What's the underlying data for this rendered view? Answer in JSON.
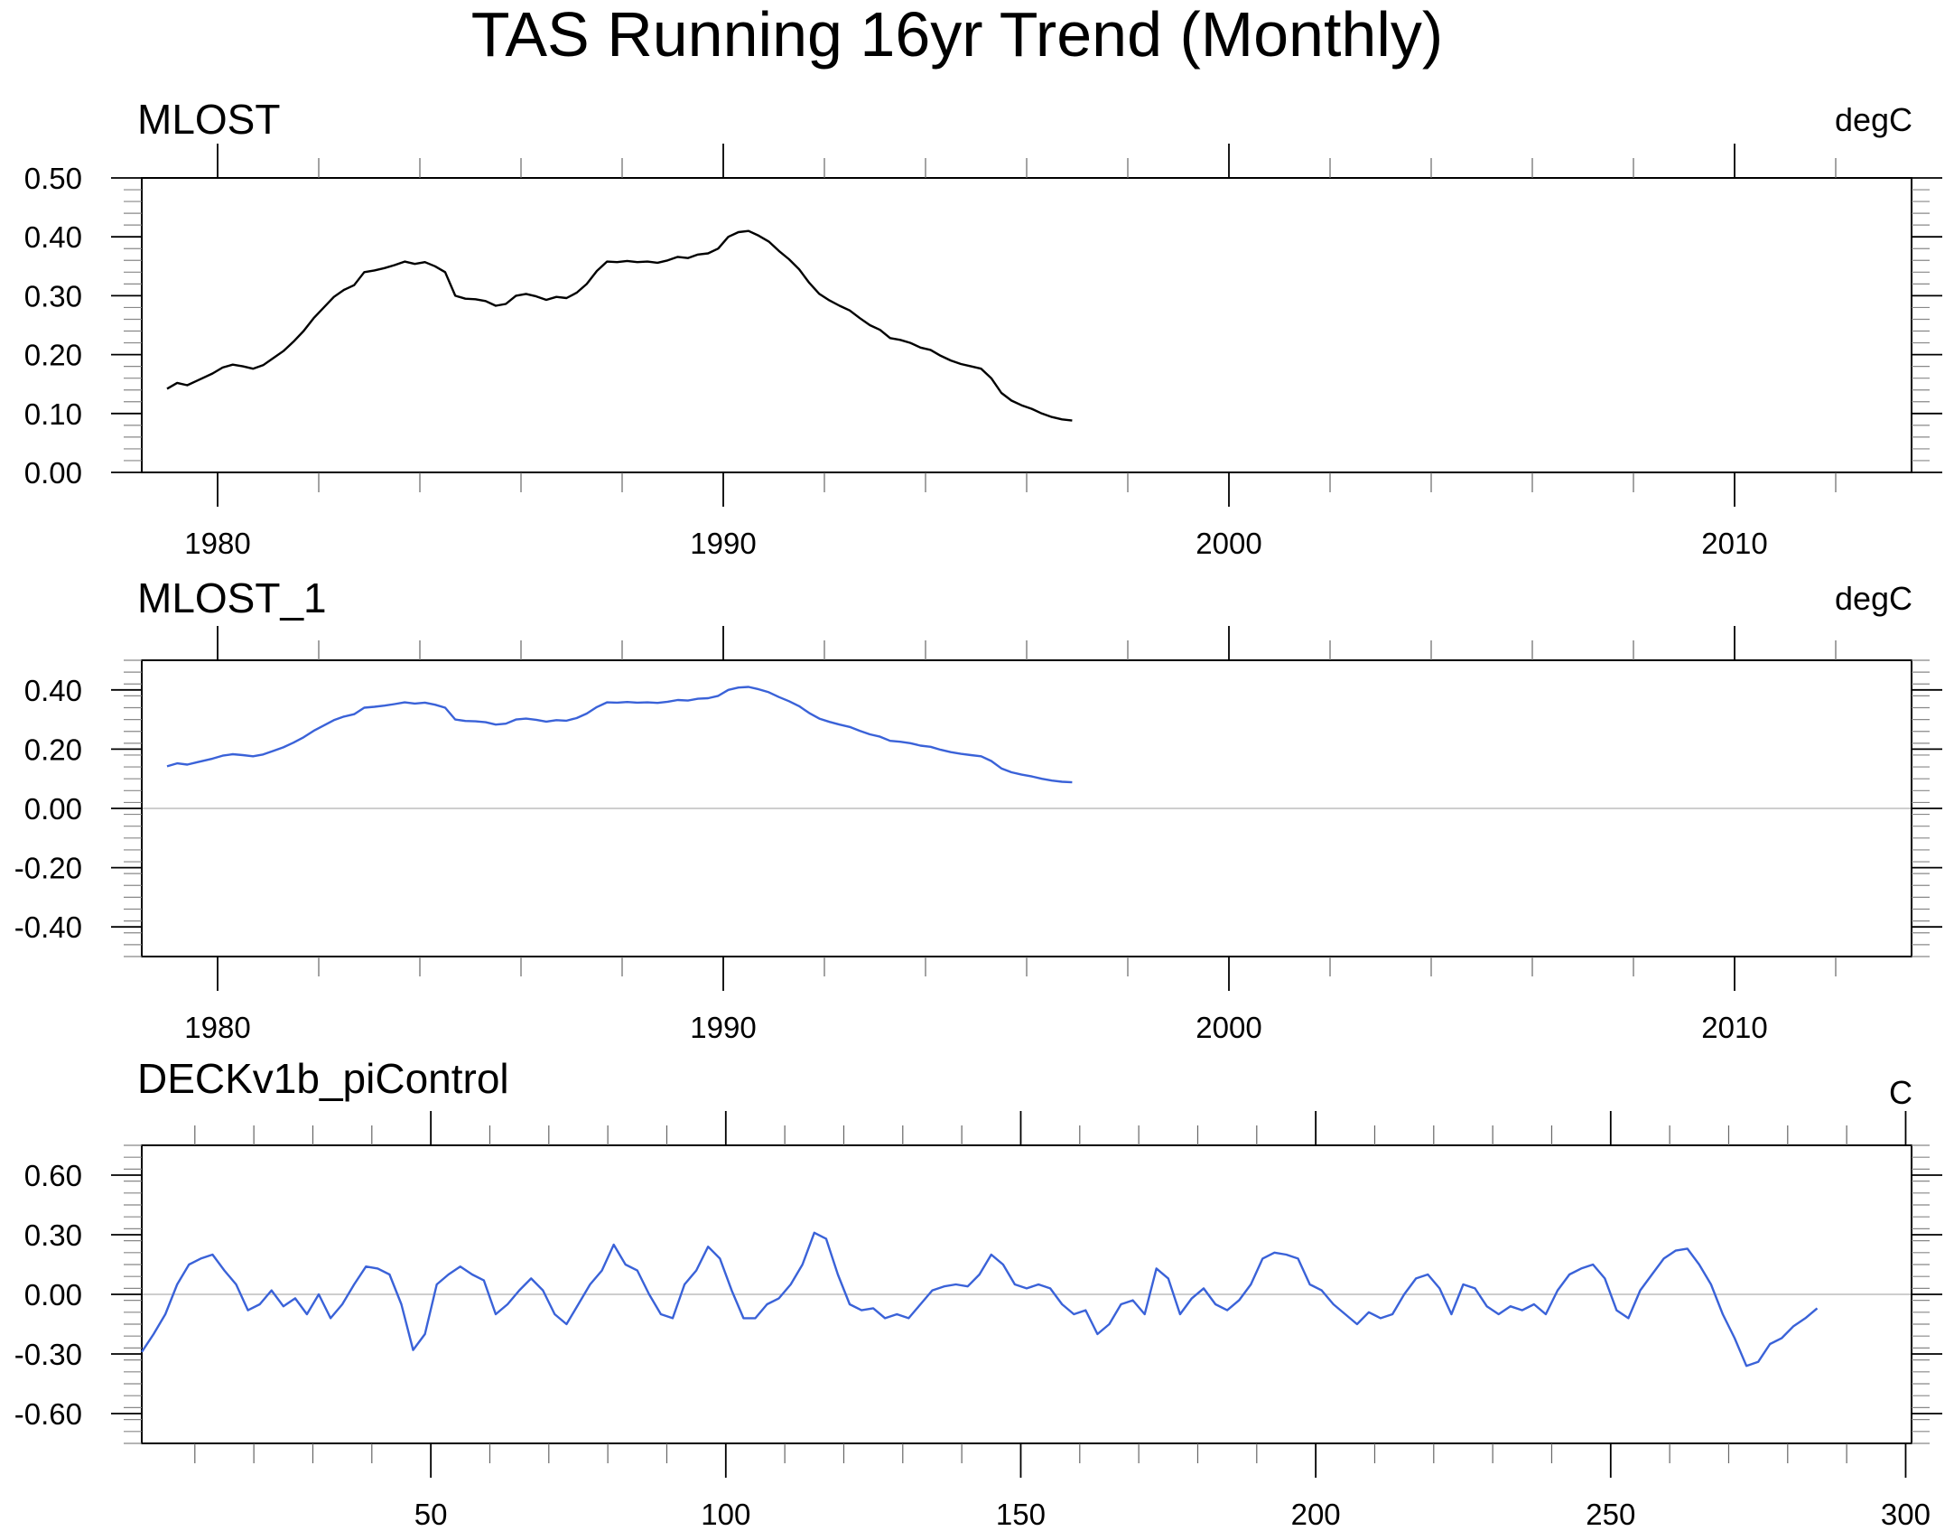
{
  "title": "TAS Running 16yr Trend (Monthly)",
  "colors": {
    "black": "#000000",
    "blue": "#3a62d8",
    "zero_line": "#bdbdbd"
  },
  "chart_data": [
    {
      "type": "line",
      "title": "MLOST",
      "units": "degC",
      "xlim": [
        1978.5,
        2013.5
      ],
      "ylim": [
        0.0,
        0.5
      ],
      "xticks": [
        1980,
        1990,
        2000,
        2010
      ],
      "xtick_labels": [
        "1980",
        "1990",
        "2000",
        "2010"
      ],
      "yticks": [
        0.0,
        0.1,
        0.2,
        0.3,
        0.4,
        0.5
      ],
      "ytick_labels": [
        "0.00",
        "0.10",
        "0.20",
        "0.30",
        "0.40",
        "0.50"
      ],
      "zero_line": false,
      "series": [
        {
          "color": "#000000",
          "x": [
            1979.0,
            1979.2,
            1979.4,
            1979.6,
            1979.9,
            1980.1,
            1980.3,
            1980.5,
            1980.7,
            1980.9,
            1981.1,
            1981.3,
            1981.5,
            1981.7,
            1981.9,
            1982.1,
            1982.3,
            1982.5,
            1982.7,
            1982.9,
            1983.1,
            1983.3,
            1983.5,
            1983.7,
            1983.9,
            1984.1,
            1984.3,
            1984.5,
            1984.7,
            1984.9,
            1985.1,
            1985.3,
            1985.5,
            1985.7,
            1985.9,
            1986.1,
            1986.3,
            1986.5,
            1986.7,
            1986.9,
            1987.1,
            1987.3,
            1987.5,
            1987.7,
            1987.9,
            1988.1,
            1988.3,
            1988.5,
            1988.7,
            1988.9,
            1989.1,
            1989.3,
            1989.5,
            1989.7,
            1989.9,
            1990.1,
            1990.3,
            1990.5,
            1990.7,
            1990.9,
            1991.1,
            1991.3,
            1991.5,
            1991.7,
            1991.9,
            1992.1,
            1992.3,
            1992.5,
            1992.7,
            1992.9,
            1993.1,
            1993.3,
            1993.5,
            1993.7,
            1993.9,
            1994.1,
            1994.3,
            1994.5,
            1994.7,
            1994.9,
            1995.1,
            1995.3,
            1995.5,
            1995.7,
            1995.9,
            1996.1,
            1996.3,
            1996.5,
            1996.7,
            1996.9
          ],
          "y": [
            0.142,
            0.152,
            0.148,
            0.156,
            0.168,
            0.178,
            0.183,
            0.18,
            0.176,
            0.182,
            0.194,
            0.206,
            0.222,
            0.24,
            0.262,
            0.28,
            0.298,
            0.31,
            0.318,
            0.34,
            0.343,
            0.347,
            0.352,
            0.358,
            0.354,
            0.357,
            0.35,
            0.34,
            0.3,
            0.295,
            0.294,
            0.291,
            0.283,
            0.286,
            0.3,
            0.303,
            0.299,
            0.293,
            0.298,
            0.296,
            0.305,
            0.32,
            0.342,
            0.358,
            0.357,
            0.359,
            0.357,
            0.358,
            0.356,
            0.36,
            0.366,
            0.364,
            0.37,
            0.372,
            0.38,
            0.4,
            0.408,
            0.41,
            0.402,
            0.392,
            0.376,
            0.362,
            0.345,
            0.322,
            0.303,
            0.292,
            0.283,
            0.275,
            0.262,
            0.25,
            0.242,
            0.228,
            0.225,
            0.22,
            0.212,
            0.208,
            0.198,
            0.19,
            0.184,
            0.18,
            0.176,
            0.16,
            0.135,
            0.122,
            0.114,
            0.108,
            0.1,
            0.094,
            0.09,
            0.088
          ]
        }
      ]
    },
    {
      "type": "line",
      "title": "MLOST_1",
      "units": "degC",
      "xlim": [
        1978.5,
        2013.5
      ],
      "ylim": [
        -0.5,
        0.5
      ],
      "xticks": [
        1980,
        1990,
        2000,
        2010
      ],
      "xtick_labels": [
        "1980",
        "1990",
        "2000",
        "2010"
      ],
      "yticks": [
        -0.4,
        -0.2,
        0.0,
        0.2,
        0.4
      ],
      "ytick_labels": [
        "-0.40",
        "-0.20",
        "0.00",
        "0.20",
        "0.40"
      ],
      "zero_line": true,
      "series": [
        {
          "color": "#3a62d8",
          "x": [
            1979.0,
            1979.2,
            1979.4,
            1979.6,
            1979.9,
            1980.1,
            1980.3,
            1980.5,
            1980.7,
            1980.9,
            1981.1,
            1981.3,
            1981.5,
            1981.7,
            1981.9,
            1982.1,
            1982.3,
            1982.5,
            1982.7,
            1982.9,
            1983.1,
            1983.3,
            1983.5,
            1983.7,
            1983.9,
            1984.1,
            1984.3,
            1984.5,
            1984.7,
            1984.9,
            1985.1,
            1985.3,
            1985.5,
            1985.7,
            1985.9,
            1986.1,
            1986.3,
            1986.5,
            1986.7,
            1986.9,
            1987.1,
            1987.3,
            1987.5,
            1987.7,
            1987.9,
            1988.1,
            1988.3,
            1988.5,
            1988.7,
            1988.9,
            1989.1,
            1989.3,
            1989.5,
            1989.7,
            1989.9,
            1990.1,
            1990.3,
            1990.5,
            1990.7,
            1990.9,
            1991.1,
            1991.3,
            1991.5,
            1991.7,
            1991.9,
            1992.1,
            1992.3,
            1992.5,
            1992.7,
            1992.9,
            1993.1,
            1993.3,
            1993.5,
            1993.7,
            1993.9,
            1994.1,
            1994.3,
            1994.5,
            1994.7,
            1994.9,
            1995.1,
            1995.3,
            1995.5,
            1995.7,
            1995.9,
            1996.1,
            1996.3,
            1996.5,
            1996.7,
            1996.9
          ],
          "y": [
            0.142,
            0.152,
            0.148,
            0.156,
            0.168,
            0.178,
            0.183,
            0.18,
            0.176,
            0.182,
            0.194,
            0.206,
            0.222,
            0.24,
            0.262,
            0.28,
            0.298,
            0.31,
            0.318,
            0.34,
            0.343,
            0.347,
            0.352,
            0.358,
            0.354,
            0.357,
            0.35,
            0.34,
            0.3,
            0.295,
            0.294,
            0.291,
            0.283,
            0.286,
            0.3,
            0.303,
            0.299,
            0.293,
            0.298,
            0.296,
            0.305,
            0.32,
            0.342,
            0.358,
            0.357,
            0.359,
            0.357,
            0.358,
            0.356,
            0.36,
            0.366,
            0.364,
            0.37,
            0.372,
            0.38,
            0.4,
            0.408,
            0.41,
            0.402,
            0.392,
            0.376,
            0.362,
            0.345,
            0.322,
            0.303,
            0.292,
            0.283,
            0.275,
            0.262,
            0.25,
            0.242,
            0.228,
            0.225,
            0.22,
            0.212,
            0.208,
            0.198,
            0.19,
            0.184,
            0.18,
            0.176,
            0.16,
            0.135,
            0.122,
            0.114,
            0.108,
            0.1,
            0.094,
            0.09,
            0.088
          ]
        }
      ]
    },
    {
      "type": "line",
      "title": "DECKv1b_piControl",
      "units": "C",
      "xlim": [
        1,
        301
      ],
      "ylim": [
        -0.75,
        0.75
      ],
      "xticks": [
        50,
        100,
        150,
        200,
        250,
        300
      ],
      "xtick_labels": [
        "50",
        "100",
        "150",
        "200",
        "250",
        "300"
      ],
      "yticks": [
        -0.6,
        -0.3,
        0.0,
        0.3,
        0.6
      ],
      "ytick_labels": [
        "-0.60",
        "-0.30",
        "0.00",
        "0.30",
        "0.60"
      ],
      "zero_line": true,
      "series": [
        {
          "color": "#3a62d8",
          "x": [
            1,
            3,
            5,
            7,
            9,
            11,
            13,
            15,
            17,
            19,
            21,
            23,
            25,
            27,
            29,
            31,
            33,
            35,
            37,
            39,
            41,
            43,
            45,
            47,
            49,
            51,
            53,
            55,
            57,
            59,
            61,
            63,
            65,
            67,
            69,
            71,
            73,
            75,
            77,
            79,
            81,
            83,
            85,
            87,
            89,
            91,
            93,
            95,
            97,
            99,
            101,
            103,
            105,
            107,
            109,
            111,
            113,
            115,
            117,
            119,
            121,
            123,
            125,
            127,
            129,
            131,
            133,
            135,
            137,
            139,
            141,
            143,
            145,
            147,
            149,
            151,
            153,
            155,
            157,
            159,
            161,
            163,
            165,
            167,
            169,
            171,
            173,
            175,
            177,
            179,
            181,
            183,
            185,
            187,
            189,
            191,
            193,
            195,
            197,
            199,
            201,
            203,
            205,
            207,
            209,
            211,
            213,
            215,
            217,
            219,
            221,
            223,
            225,
            227,
            229,
            231,
            233,
            235,
            237,
            239,
            241,
            243,
            245,
            247,
            249,
            251,
            253,
            255,
            257,
            259,
            261,
            263,
            265,
            267,
            269,
            271,
            273,
            275,
            277,
            279,
            281,
            283,
            285
          ],
          "y": [
            -0.29,
            -0.2,
            -0.1,
            0.05,
            0.15,
            0.18,
            0.2,
            0.12,
            0.05,
            -0.08,
            -0.05,
            0.02,
            -0.06,
            -0.02,
            -0.1,
            0.0,
            -0.12,
            -0.05,
            0.05,
            0.14,
            0.13,
            0.1,
            -0.05,
            -0.28,
            -0.2,
            0.05,
            0.1,
            0.14,
            0.1,
            0.07,
            -0.1,
            -0.05,
            0.02,
            0.08,
            0.02,
            -0.1,
            -0.15,
            -0.05,
            0.05,
            0.12,
            0.25,
            0.15,
            0.12,
            0.0,
            -0.1,
            -0.12,
            0.05,
            0.12,
            0.24,
            0.18,
            0.02,
            -0.12,
            -0.12,
            -0.05,
            -0.02,
            0.05,
            0.15,
            0.31,
            0.28,
            0.1,
            -0.05,
            -0.08,
            -0.07,
            -0.12,
            -0.1,
            -0.12,
            -0.05,
            0.02,
            0.04,
            0.05,
            0.04,
            0.1,
            0.2,
            0.15,
            0.05,
            0.03,
            0.05,
            0.03,
            -0.05,
            -0.1,
            -0.08,
            -0.2,
            -0.15,
            -0.05,
            -0.03,
            -0.1,
            0.13,
            0.08,
            -0.1,
            -0.02,
            0.03,
            -0.05,
            -0.08,
            -0.03,
            0.05,
            0.18,
            0.21,
            0.2,
            0.18,
            0.05,
            0.02,
            -0.05,
            -0.1,
            -0.15,
            -0.09,
            -0.12,
            -0.1,
            0.0,
            0.08,
            0.1,
            0.03,
            -0.1,
            0.05,
            0.03,
            -0.06,
            -0.1,
            -0.06,
            -0.08,
            -0.05,
            -0.1,
            0.02,
            0.1,
            0.13,
            0.15,
            0.08,
            -0.08,
            -0.12,
            0.02,
            0.1,
            0.18,
            0.22,
            0.23,
            0.15,
            0.05,
            -0.1,
            -0.22,
            -0.36,
            -0.34,
            -0.25,
            -0.22,
            -0.16,
            -0.12,
            -0.07
          ]
        }
      ]
    }
  ]
}
